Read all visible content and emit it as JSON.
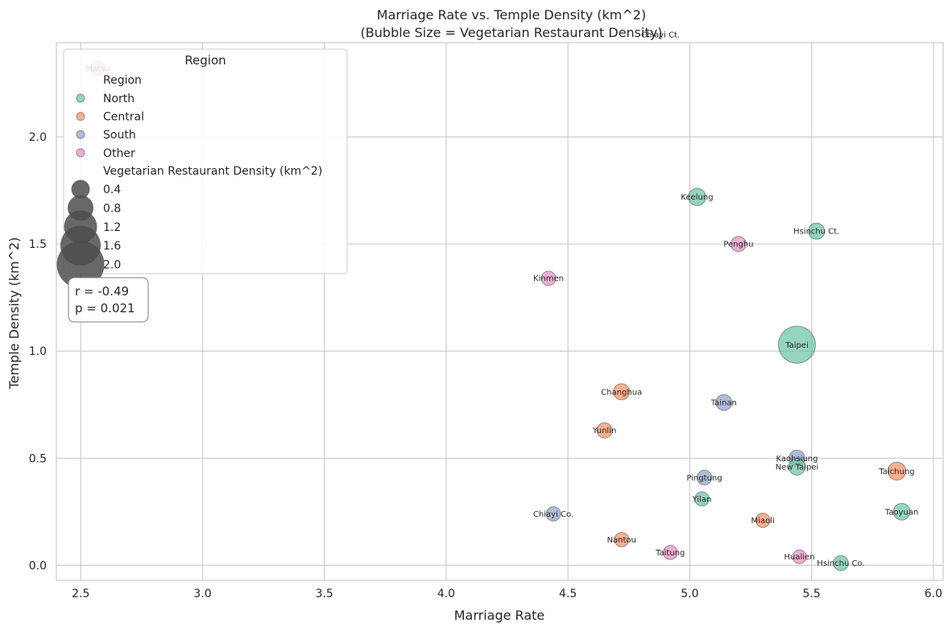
{
  "chart_data": {
    "type": "scatter",
    "title_line1": "Marriage Rate vs. Temple Density (km^2)",
    "title_line2": "(Bubble Size = Vegetarian Restaurant Density)",
    "xlabel": "Marriage Rate",
    "ylabel": "Temple Density (km^2)",
    "xlim": [
      2.4,
      6.04
    ],
    "ylim": [
      -0.07,
      2.44
    ],
    "xticks": [
      "2.5",
      "3.0",
      "3.5",
      "4.0",
      "4.5",
      "5.0",
      "5.5",
      "6.0"
    ],
    "yticks": [
      "0.0",
      "0.5",
      "1.0",
      "1.5",
      "2.0"
    ],
    "grid": true,
    "colors": {
      "North": "#66c2a5",
      "Central": "#fc8d62",
      "South": "#8da0cb",
      "Other": "#e78ac3"
    },
    "points": [
      {
        "name": "Matsu",
        "region": "Other",
        "x": 2.57,
        "y": 2.32,
        "size": 0.25
      },
      {
        "name": "Chiayi Ct.",
        "region": "South",
        "x": 4.88,
        "y": 2.49,
        "size": 0.4
      },
      {
        "name": "Keelung",
        "region": "North",
        "x": 5.03,
        "y": 1.72,
        "size": 0.5
      },
      {
        "name": "Hsinchu Ct.",
        "region": "North",
        "x": 5.52,
        "y": 1.56,
        "size": 0.4
      },
      {
        "name": "Penghu",
        "region": "Other",
        "x": 5.2,
        "y": 1.5,
        "size": 0.32
      },
      {
        "name": "Kinmen",
        "region": "Other",
        "x": 4.42,
        "y": 1.34,
        "size": 0.25
      },
      {
        "name": "Taipei",
        "region": "North",
        "x": 5.44,
        "y": 1.03,
        "size": 2.1
      },
      {
        "name": "Changhua",
        "region": "Central",
        "x": 4.72,
        "y": 0.81,
        "size": 0.4
      },
      {
        "name": "Tainan",
        "region": "South",
        "x": 5.14,
        "y": 0.76,
        "size": 0.38
      },
      {
        "name": "Yunlin",
        "region": "Central",
        "x": 4.65,
        "y": 0.63,
        "size": 0.33
      },
      {
        "name": "Kaohsiung",
        "region": "South",
        "x": 5.44,
        "y": 0.5,
        "size": 0.38
      },
      {
        "name": "New Taipei",
        "region": "North",
        "x": 5.44,
        "y": 0.46,
        "size": 0.45
      },
      {
        "name": "Taichung",
        "region": "Central",
        "x": 5.85,
        "y": 0.44,
        "size": 0.55
      },
      {
        "name": "Pingtung",
        "region": "South",
        "x": 5.06,
        "y": 0.41,
        "size": 0.28
      },
      {
        "name": "Chiayi Co.",
        "region": "South",
        "x": 4.44,
        "y": 0.24,
        "size": 0.25
      },
      {
        "name": "Yilan",
        "region": "North",
        "x": 5.05,
        "y": 0.31,
        "size": 0.25
      },
      {
        "name": "Miaoli",
        "region": "Central",
        "x": 5.3,
        "y": 0.21,
        "size": 0.25
      },
      {
        "name": "Taoyuan",
        "region": "North",
        "x": 5.87,
        "y": 0.25,
        "size": 0.45
      },
      {
        "name": "Hsinchu Co.",
        "region": "North",
        "x": 5.62,
        "y": 0.01,
        "size": 0.3
      },
      {
        "name": "Nantou",
        "region": "Central",
        "x": 4.72,
        "y": 0.12,
        "size": 0.25
      },
      {
        "name": "Taitung",
        "region": "Other",
        "x": 4.92,
        "y": 0.06,
        "size": 0.23
      },
      {
        "name": "Hualien",
        "region": "Other",
        "x": 5.45,
        "y": 0.04,
        "size": 0.2
      }
    ],
    "legend": {
      "title": "Region",
      "hue_title": "Region",
      "regions": [
        "North",
        "Central",
        "South",
        "Other"
      ],
      "size_title": "Vegetarian Restaurant Density (km^2)",
      "size_labels": [
        "0.4",
        "0.8",
        "1.2",
        "1.6",
        "2.0"
      ],
      "size_values": [
        0.4,
        0.8,
        1.2,
        1.6,
        2.0
      ],
      "placement": "upper-left"
    },
    "stats": {
      "r": "r = -0.49",
      "p": "p = 0.021"
    }
  }
}
